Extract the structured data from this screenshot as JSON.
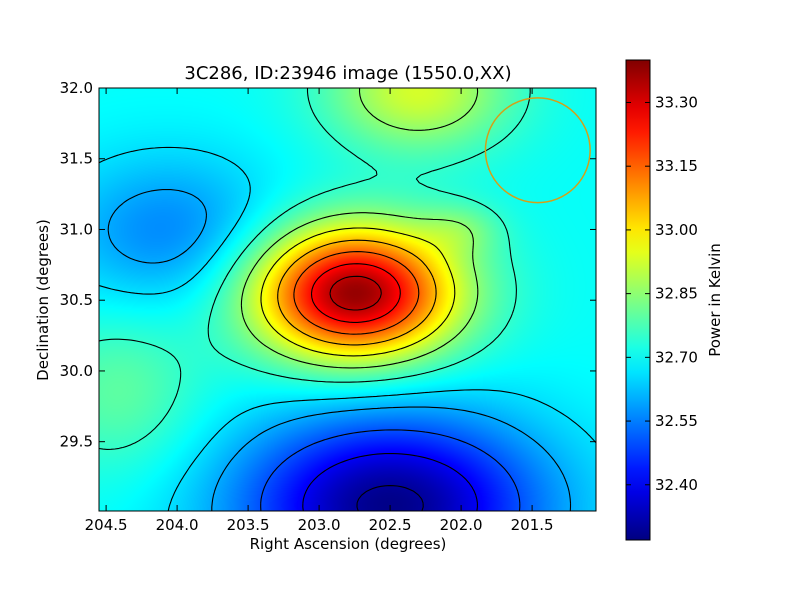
{
  "chart_data": {
    "type": "heatmap",
    "title": "3C286, ID:23946 image (1550.0,XX)",
    "xlabel": "Right Ascension (degrees)",
    "ylabel": "Declination (degrees)",
    "xlim": [
      204.55,
      201.05
    ],
    "ylim": [
      29.01,
      32.0
    ],
    "x_ticks": [
      204.5,
      204.0,
      203.5,
      203.0,
      202.5,
      202.0,
      201.5
    ],
    "x_tick_labels": [
      "204.5",
      "204.0",
      "203.5",
      "203.0",
      "202.5",
      "202.0",
      "201.5"
    ],
    "y_ticks": [
      29.5,
      30.0,
      30.5,
      31.0,
      31.5,
      32.0
    ],
    "y_tick_labels": [
      "29.5",
      "30.0",
      "30.5",
      "31.0",
      "31.5",
      "32.0"
    ],
    "colorbar": {
      "label": "Power in Kelvin",
      "range": [
        32.27,
        33.4
      ],
      "ticks": [
        32.4,
        32.55,
        32.7,
        32.85,
        33.0,
        33.15,
        33.3
      ],
      "tick_labels": [
        "32.40",
        "32.55",
        "32.70",
        "32.85",
        "33.00",
        "33.15",
        "33.30"
      ],
      "colormap": "jet"
    },
    "features": [
      {
        "kind": "peak",
        "ra": 202.75,
        "dec": 30.55,
        "value": 33.38,
        "sx": 0.5,
        "sy": 0.33
      },
      {
        "kind": "min",
        "ra": 202.5,
        "dec": 29.05,
        "value": 32.28,
        "sx": 0.75,
        "sy": 0.45
      },
      {
        "kind": "min",
        "ra": 204.05,
        "dec": 30.98,
        "value": 32.56,
        "sx": 0.55,
        "sy": 0.38
      },
      {
        "kind": "max",
        "ra": 202.3,
        "dec": 31.98,
        "value": 32.93,
        "sx": 0.45,
        "sy": 0.3
      },
      {
        "kind": "max",
        "ra": 202.0,
        "dec": 31.0,
        "value": 32.78,
        "sx": 0.2,
        "sy": 0.13
      },
      {
        "kind": "max",
        "ra": 204.4,
        "dec": 29.85,
        "value": 32.8,
        "sx": 0.4,
        "sy": 0.4
      }
    ],
    "background_value": 32.7,
    "contour_levels": [
      32.3,
      32.4,
      32.5,
      32.6,
      32.66,
      32.75,
      32.85,
      32.95,
      33.05,
      33.15,
      33.25,
      33.33
    ],
    "beam": {
      "ra": 201.46,
      "dec": 31.56,
      "radius_deg": 0.37,
      "color": "#d4a017"
    }
  }
}
